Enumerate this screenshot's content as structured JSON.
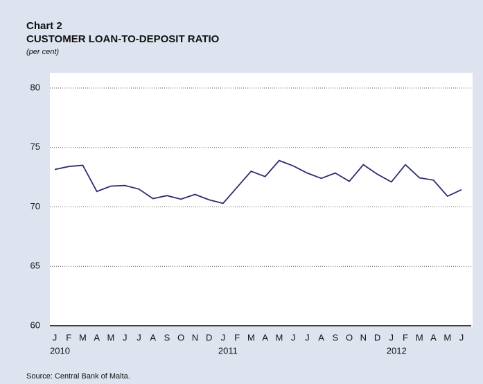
{
  "chart_data": {
    "type": "line",
    "label": "Chart 2",
    "title": "CUSTOMER LOAN-TO-DEPOSIT RATIO",
    "subtitle": "(per cent)",
    "categories": [
      "J",
      "F",
      "M",
      "A",
      "M",
      "J",
      "J",
      "A",
      "S",
      "O",
      "N",
      "D",
      "J",
      "F",
      "M",
      "A",
      "M",
      "J",
      "J",
      "A",
      "S",
      "O",
      "N",
      "D",
      "J",
      "F",
      "M",
      "A",
      "M",
      "J"
    ],
    "years": [
      "2010",
      "2011",
      "2012"
    ],
    "series": [
      {
        "name": "Loan-to-deposit ratio",
        "color": "#2b2d6e",
        "values": [
          73.15,
          73.4,
          73.5,
          71.3,
          71.75,
          71.8,
          71.5,
          70.7,
          70.95,
          70.65,
          71.05,
          70.6,
          70.3,
          71.65,
          73.0,
          72.55,
          73.9,
          73.45,
          72.85,
          72.4,
          72.85,
          72.15,
          73.55,
          72.75,
          72.1,
          73.55,
          72.45,
          72.25,
          70.9,
          71.45
        ]
      }
    ],
    "ylim": [
      60,
      80
    ],
    "yticks": [
      60,
      65,
      70,
      75,
      80
    ],
    "grid": true,
    "source": "Source: Central Bank of Malta."
  }
}
